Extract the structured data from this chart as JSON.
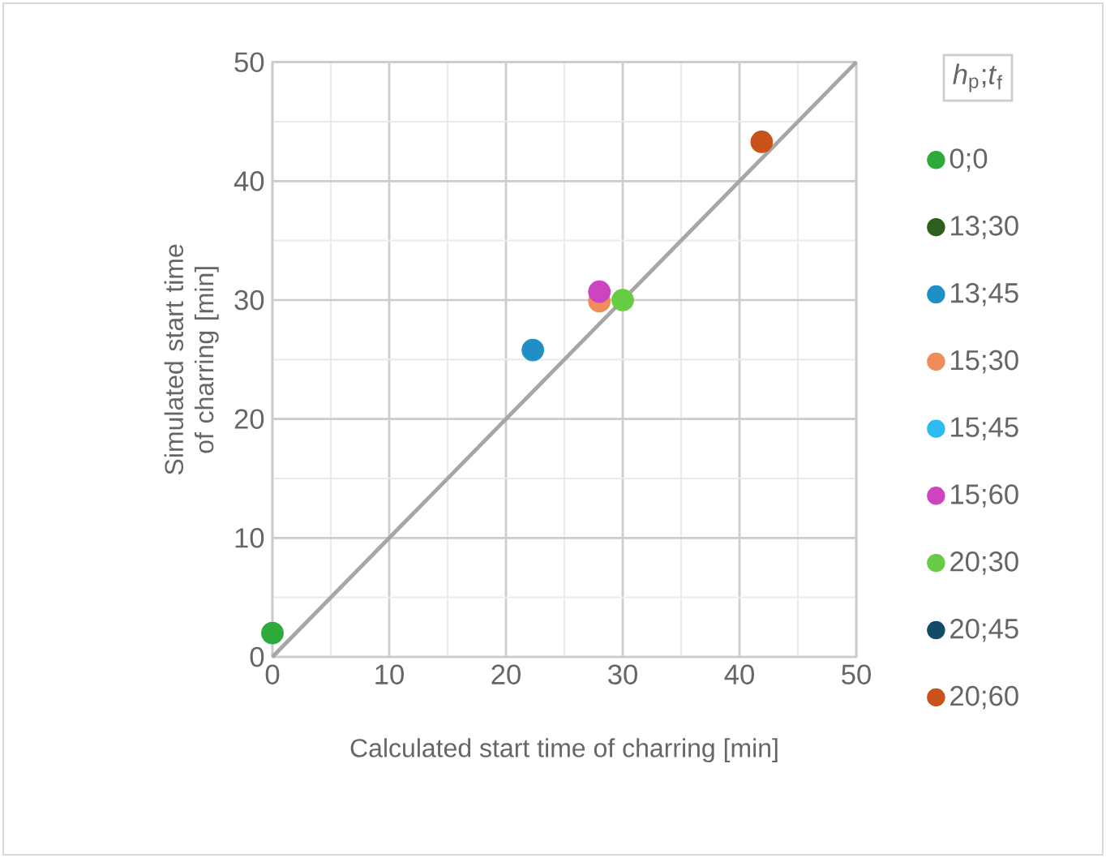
{
  "chart_data": {
    "type": "scatter",
    "xlabel": "Calculated start time of charring [min]",
    "ylabel": "Simulated start time of charring [min]",
    "legend_title": "*h*$_{p}$;*t*$_{f}$",
    "xlim": [
      0,
      50
    ],
    "ylim": [
      0,
      50
    ],
    "xticks": [
      0,
      10,
      20,
      30,
      40,
      50
    ],
    "yticks": [
      0,
      10,
      20,
      30,
      40,
      50
    ],
    "grid": true,
    "legend": "right",
    "series": [
      {
        "name": "0;0",
        "color": "#2eaa3c",
        "x": [
          0
        ],
        "values": [
          2.0
        ]
      },
      {
        "name": "13;30",
        "color": "#2f5f1c"
      },
      {
        "name": "13;45",
        "color": "#1f8fc5",
        "x": [
          22.3
        ],
        "values": [
          25.8
        ]
      },
      {
        "name": "15;30",
        "color": "#ef8c5a",
        "x": [
          28.0
        ],
        "values": [
          29.9
        ]
      },
      {
        "name": "15;45",
        "color": "#2cbcef"
      },
      {
        "name": "15;60",
        "color": "#cc44c0",
        "x": [
          28.0
        ],
        "values": [
          30.7
        ]
      },
      {
        "name": "20;30",
        "color": "#66cc44",
        "x": [
          30.0
        ],
        "values": [
          30.0
        ]
      },
      {
        "name": "20;45",
        "color": "#124b68"
      },
      {
        "name": "20;60",
        "color": "#c8521a",
        "x": [
          41.9
        ],
        "values": [
          43.3
        ]
      },
      {
        "type": "line",
        "color": "#a6a6a6",
        "x": [
          0,
          50
        ],
        "values": [
          0,
          50
        ]
      }
    ]
  }
}
